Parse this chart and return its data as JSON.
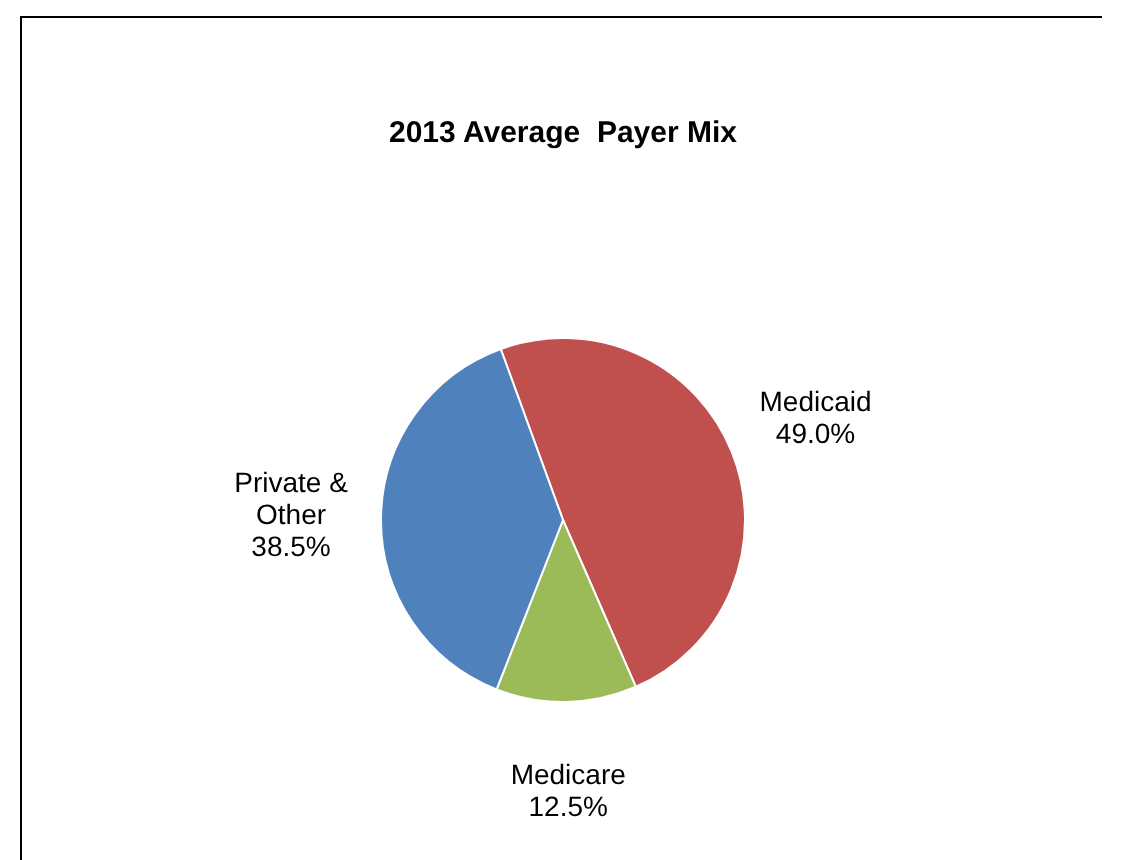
{
  "chart_data": {
    "type": "pie",
    "title": "2013 Average  Payer Mix",
    "categories": [
      "Medicaid",
      "Medicare",
      "Private & Other"
    ],
    "values": [
      49.0,
      12.5,
      38.5
    ],
    "colors": [
      "#c0504d",
      "#9bbb59",
      "#4f81bd"
    ],
    "value_labels": [
      "49.0%",
      "12.5%",
      "38.5%"
    ],
    "legend": false
  }
}
